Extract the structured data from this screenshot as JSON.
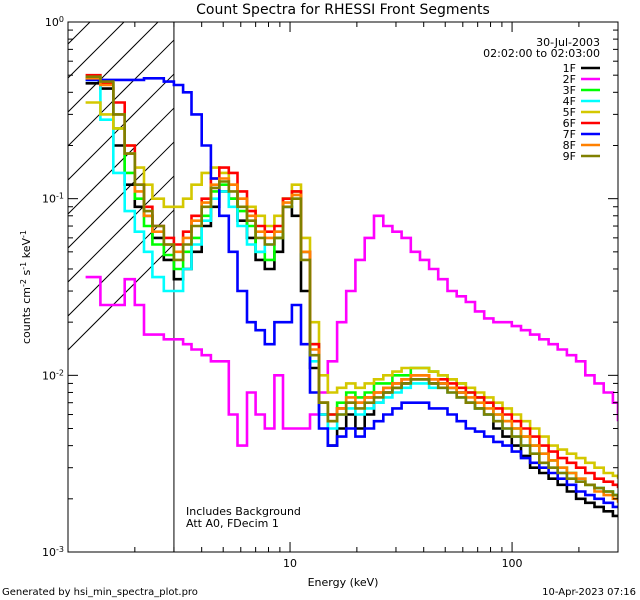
{
  "chart_data": {
    "type": "line",
    "title": "Count Spectra for RHESSI Front Segments",
    "xlabel": "Energy (keV)",
    "ylabel_parts": [
      "counts cm",
      "-2",
      " s",
      "-1",
      " keV",
      "-1"
    ],
    "x_scale": "log",
    "y_scale": "log",
    "xlim": [
      1,
      300
    ],
    "ylim": [
      0.001,
      1
    ],
    "x_tick_labels": [
      {
        "value": 10,
        "label": "10"
      },
      {
        "value": 100,
        "label": "100"
      }
    ],
    "y_tick_labels": [
      {
        "value": 1,
        "base": "10",
        "exp": "0"
      },
      {
        "value": 0.1,
        "base": "10",
        "exp": "-1"
      },
      {
        "value": 0.01,
        "base": "10",
        "exp": "-2"
      },
      {
        "value": 0.001,
        "base": "10",
        "exp": "-3"
      }
    ],
    "shaded_region": {
      "x_from": 1,
      "x_to": 3,
      "style": "hatched"
    },
    "date": "30-Jul-2003",
    "time_range": "02:02:00 to 02:03:00",
    "annotations": [
      "Includes Background",
      "Att A0, FDecim 1"
    ],
    "series": [
      {
        "name": "1F",
        "color": "#000000",
        "x": [
          1.2,
          1.4,
          1.6,
          1.8,
          2.0,
          2.2,
          2.4,
          2.7,
          3.0,
          3.3,
          3.6,
          4.0,
          4.4,
          4.8,
          5.3,
          5.8,
          6.4,
          7.0,
          7.7,
          8.5,
          9.3,
          10.2,
          11.2,
          12.3,
          13.5,
          14.8,
          16.3,
          17.9,
          19.7,
          21.7,
          23.9,
          26.3,
          28.9,
          31.8,
          35.0,
          38.5,
          42.3,
          46.5,
          51.2,
          56.3,
          61.9,
          68.1,
          74.9,
          82.4,
          90.6,
          99.7,
          109.7,
          120.6,
          132.7,
          146.0,
          160.6,
          176.6,
          194.3,
          213.7,
          235.1,
          258.6,
          284.5,
          300.0
        ],
        "y": [
          0.45,
          0.42,
          0.2,
          0.12,
          0.09,
          0.08,
          0.06,
          0.045,
          0.035,
          0.04,
          0.05,
          0.07,
          0.09,
          0.11,
          0.1,
          0.075,
          0.06,
          0.045,
          0.04,
          0.05,
          0.09,
          0.08,
          0.03,
          0.011,
          0.006,
          0.004,
          0.005,
          0.006,
          0.005,
          0.006,
          0.007,
          0.008,
          0.0085,
          0.009,
          0.0095,
          0.0095,
          0.009,
          0.009,
          0.0085,
          0.008,
          0.007,
          0.0065,
          0.006,
          0.005,
          0.0045,
          0.004,
          0.0035,
          0.003,
          0.0028,
          0.0026,
          0.0024,
          0.0022,
          0.002,
          0.0019,
          0.0018,
          0.0017,
          0.0016,
          0.0016
        ]
      },
      {
        "name": "2F",
        "color": "#ff00ff",
        "x": [
          1.2,
          1.4,
          1.6,
          1.8,
          2.0,
          2.2,
          2.4,
          2.7,
          3.0,
          3.3,
          3.6,
          4.0,
          4.4,
          4.8,
          5.3,
          5.8,
          6.4,
          7.0,
          7.7,
          8.5,
          9.3,
          10.2,
          11.2,
          12.3,
          13.5,
          14.8,
          16.3,
          17.9,
          19.7,
          21.7,
          23.9,
          26.3,
          28.9,
          31.8,
          35.0,
          38.5,
          42.3,
          46.5,
          51.2,
          56.3,
          61.9,
          68.1,
          74.9,
          82.4,
          90.6,
          99.7,
          109.7,
          120.6,
          132.7,
          146.0,
          160.6,
          176.6,
          194.3,
          213.7,
          235.1,
          258.6,
          284.5,
          300.0
        ],
        "y": [
          0.036,
          0.025,
          0.025,
          0.035,
          0.025,
          0.017,
          0.017,
          0.016,
          0.016,
          0.015,
          0.014,
          0.013,
          0.012,
          0.012,
          0.006,
          0.004,
          0.008,
          0.006,
          0.005,
          0.01,
          0.005,
          0.005,
          0.005,
          0.006,
          0.008,
          0.012,
          0.02,
          0.03,
          0.045,
          0.06,
          0.08,
          0.07,
          0.065,
          0.06,
          0.05,
          0.045,
          0.04,
          0.035,
          0.03,
          0.028,
          0.026,
          0.023,
          0.021,
          0.02,
          0.02,
          0.019,
          0.018,
          0.017,
          0.016,
          0.015,
          0.014,
          0.013,
          0.012,
          0.01,
          0.009,
          0.008,
          0.007,
          0.0055
        ]
      },
      {
        "name": "3F",
        "color": "#00ff00",
        "x": [
          1.2,
          1.4,
          1.6,
          1.8,
          2.0,
          2.2,
          2.4,
          2.7,
          3.0,
          3.3,
          3.6,
          4.0,
          4.4,
          4.8,
          5.3,
          5.8,
          6.4,
          7.0,
          7.7,
          8.5,
          9.3,
          10.2,
          11.2,
          12.3,
          13.5,
          14.8,
          16.3,
          17.9,
          19.7,
          21.7,
          23.9,
          26.3,
          28.9,
          31.8,
          35.0,
          38.5,
          42.3,
          46.5,
          51.2,
          56.3,
          61.9,
          68.1,
          74.9,
          82.4,
          90.6,
          99.7,
          109.7,
          120.6,
          132.7,
          146.0,
          160.6,
          176.6,
          194.3,
          213.7,
          235.1,
          258.6,
          284.5,
          300.0
        ],
        "y": [
          0.48,
          0.45,
          0.25,
          0.14,
          0.1,
          0.07,
          0.055,
          0.048,
          0.04,
          0.05,
          0.06,
          0.08,
          0.11,
          0.12,
          0.1,
          0.085,
          0.07,
          0.05,
          0.045,
          0.06,
          0.1,
          0.11,
          0.05,
          0.015,
          0.007,
          0.006,
          0.007,
          0.008,
          0.0075,
          0.008,
          0.009,
          0.009,
          0.01,
          0.01,
          0.011,
          0.011,
          0.0105,
          0.01,
          0.0095,
          0.009,
          0.008,
          0.0075,
          0.007,
          0.006,
          0.0055,
          0.005,
          0.0045,
          0.004,
          0.0036,
          0.0033,
          0.003,
          0.0028,
          0.0026,
          0.0024,
          0.0023,
          0.0022,
          0.0021,
          0.002
        ]
      },
      {
        "name": "4F",
        "color": "#00ffff",
        "x": [
          1.2,
          1.4,
          1.6,
          1.8,
          2.0,
          2.2,
          2.4,
          2.7,
          3.0,
          3.3,
          3.6,
          4.0,
          4.4,
          4.8,
          5.3,
          5.8,
          6.4,
          7.0,
          7.7,
          8.5,
          9.3,
          10.2,
          11.2,
          12.3,
          13.5,
          14.8,
          16.3,
          17.9,
          19.7,
          21.7,
          23.9,
          26.3,
          28.9,
          31.8,
          35.0,
          38.5,
          42.3,
          46.5,
          51.2,
          56.3,
          61.9,
          68.1,
          74.9,
          82.4,
          90.6,
          99.7,
          109.7,
          120.6,
          132.7,
          146.0,
          160.6,
          176.6,
          194.3,
          213.7,
          235.1,
          258.6,
          284.5,
          300.0
        ],
        "y": [
          0.47,
          0.28,
          0.14,
          0.085,
          0.065,
          0.05,
          0.036,
          0.03,
          0.03,
          0.04,
          0.055,
          0.075,
          0.1,
          0.11,
          0.09,
          0.07,
          0.055,
          0.05,
          0.055,
          0.065,
          0.09,
          0.1,
          0.05,
          0.012,
          0.006,
          0.005,
          0.006,
          0.0065,
          0.006,
          0.0065,
          0.007,
          0.0075,
          0.008,
          0.0085,
          0.009,
          0.009,
          0.0085,
          0.0085,
          0.008,
          0.0075,
          0.007,
          0.0065,
          0.006,
          0.0055,
          0.005,
          0.0045,
          0.004,
          0.0036,
          0.0032,
          0.003,
          0.0028,
          0.0026,
          0.0025,
          0.0024,
          0.0023,
          0.0022,
          0.0021,
          0.002
        ]
      },
      {
        "name": "5F",
        "color": "#d4c800",
        "x": [
          1.2,
          1.4,
          1.6,
          1.8,
          2.0,
          2.2,
          2.4,
          2.7,
          3.0,
          3.3,
          3.6,
          4.0,
          4.4,
          4.8,
          5.3,
          5.8,
          6.4,
          7.0,
          7.7,
          8.5,
          9.3,
          10.2,
          11.2,
          12.3,
          13.5,
          14.8,
          16.3,
          17.9,
          19.7,
          21.7,
          23.9,
          26.3,
          28.9,
          31.8,
          35.0,
          38.5,
          42.3,
          46.5,
          51.2,
          56.3,
          61.9,
          68.1,
          74.9,
          82.4,
          90.6,
          99.7,
          109.7,
          120.6,
          132.7,
          146.0,
          160.6,
          176.6,
          194.3,
          213.7,
          235.1,
          258.6,
          284.5,
          300.0
        ],
        "y": [
          0.35,
          0.3,
          0.25,
          0.2,
          0.15,
          0.12,
          0.1,
          0.09,
          0.09,
          0.1,
          0.12,
          0.14,
          0.15,
          0.14,
          0.12,
          0.1,
          0.09,
          0.08,
          0.07,
          0.08,
          0.1,
          0.12,
          0.06,
          0.02,
          0.01,
          0.008,
          0.0085,
          0.009,
          0.0085,
          0.009,
          0.0095,
          0.01,
          0.0105,
          0.011,
          0.011,
          0.011,
          0.0105,
          0.01,
          0.0095,
          0.009,
          0.0085,
          0.008,
          0.0075,
          0.007,
          0.0065,
          0.006,
          0.0055,
          0.005,
          0.0045,
          0.004,
          0.0038,
          0.0036,
          0.0034,
          0.0032,
          0.003,
          0.0028,
          0.0027,
          0.0026
        ]
      },
      {
        "name": "6F",
        "color": "#ff0000",
        "x": [
          1.2,
          1.4,
          1.6,
          1.8,
          2.0,
          2.2,
          2.4,
          2.7,
          3.0,
          3.3,
          3.6,
          4.0,
          4.4,
          4.8,
          5.3,
          5.8,
          6.4,
          7.0,
          7.7,
          8.5,
          9.3,
          10.2,
          11.2,
          12.3,
          13.5,
          14.8,
          16.3,
          17.9,
          19.7,
          21.7,
          23.9,
          26.3,
          28.9,
          31.8,
          35.0,
          38.5,
          42.3,
          46.5,
          51.2,
          56.3,
          61.9,
          68.1,
          74.9,
          82.4,
          90.6,
          99.7,
          109.7,
          120.6,
          132.7,
          146.0,
          160.6,
          176.6,
          194.3,
          213.7,
          235.1,
          258.6,
          284.5,
          300.0
        ],
        "y": [
          0.5,
          0.45,
          0.35,
          0.2,
          0.12,
          0.09,
          0.07,
          0.06,
          0.055,
          0.065,
          0.08,
          0.1,
          0.13,
          0.15,
          0.14,
          0.11,
          0.085,
          0.07,
          0.065,
          0.07,
          0.1,
          0.11,
          0.05,
          0.015,
          0.007,
          0.006,
          0.0065,
          0.007,
          0.007,
          0.0075,
          0.008,
          0.0085,
          0.009,
          0.0095,
          0.01,
          0.01,
          0.0095,
          0.0095,
          0.009,
          0.0085,
          0.008,
          0.0075,
          0.007,
          0.0065,
          0.006,
          0.0055,
          0.005,
          0.0045,
          0.004,
          0.0037,
          0.0034,
          0.0032,
          0.003,
          0.0028,
          0.0026,
          0.0025,
          0.0024,
          0.0023
        ]
      },
      {
        "name": "7F",
        "color": "#0000ff",
        "x": [
          1.2,
          1.4,
          1.6,
          1.8,
          2.0,
          2.2,
          2.4,
          2.7,
          3.0,
          3.3,
          3.6,
          4.0,
          4.4,
          4.8,
          5.3,
          5.8,
          6.4,
          7.0,
          7.7,
          8.5,
          9.3,
          10.2,
          11.2,
          12.3,
          13.5,
          14.8,
          16.3,
          17.9,
          19.7,
          21.7,
          23.9,
          26.3,
          28.9,
          31.8,
          35.0,
          38.5,
          42.3,
          46.5,
          51.2,
          56.3,
          61.9,
          68.1,
          74.9,
          82.4,
          90.6,
          99.7,
          109.7,
          120.6,
          132.7,
          146.0,
          160.6,
          176.6,
          194.3,
          213.7,
          235.1,
          258.6,
          284.5,
          300.0
        ],
        "y": [
          0.47,
          0.47,
          0.47,
          0.47,
          0.47,
          0.48,
          0.48,
          0.46,
          0.44,
          0.4,
          0.3,
          0.2,
          0.13,
          0.08,
          0.05,
          0.03,
          0.02,
          0.018,
          0.015,
          0.02,
          0.02,
          0.025,
          0.015,
          0.008,
          0.005,
          0.004,
          0.0045,
          0.005,
          0.0045,
          0.005,
          0.0055,
          0.006,
          0.0065,
          0.007,
          0.007,
          0.007,
          0.0065,
          0.0065,
          0.006,
          0.0055,
          0.005,
          0.0048,
          0.0045,
          0.0042,
          0.004,
          0.0037,
          0.0034,
          0.0032,
          0.003,
          0.0028,
          0.0026,
          0.0024,
          0.0022,
          0.0021,
          0.002,
          0.0019,
          0.0018,
          0.0018
        ]
      },
      {
        "name": "8F",
        "color": "#ff8000",
        "x": [
          1.2,
          1.4,
          1.6,
          1.8,
          2.0,
          2.2,
          2.4,
          2.7,
          3.0,
          3.3,
          3.6,
          4.0,
          4.4,
          4.8,
          5.3,
          5.8,
          6.4,
          7.0,
          7.7,
          8.5,
          9.3,
          10.2,
          11.2,
          12.3,
          13.5,
          14.8,
          16.3,
          17.9,
          19.7,
          21.7,
          23.9,
          26.3,
          28.9,
          31.8,
          35.0,
          38.5,
          42.3,
          46.5,
          51.2,
          56.3,
          61.9,
          68.1,
          74.9,
          82.4,
          90.6,
          99.7,
          109.7,
          120.6,
          132.7,
          146.0,
          160.6,
          176.6,
          194.3,
          213.7,
          235.1,
          258.6,
          284.5,
          300.0
        ],
        "y": [
          0.48,
          0.44,
          0.3,
          0.18,
          0.11,
          0.08,
          0.065,
          0.055,
          0.05,
          0.06,
          0.075,
          0.095,
          0.12,
          0.13,
          0.12,
          0.1,
          0.08,
          0.065,
          0.06,
          0.065,
          0.095,
          0.105,
          0.05,
          0.014,
          0.007,
          0.0055,
          0.0065,
          0.0075,
          0.007,
          0.0075,
          0.008,
          0.0085,
          0.009,
          0.0095,
          0.01,
          0.01,
          0.0095,
          0.009,
          0.0085,
          0.008,
          0.0075,
          0.007,
          0.0065,
          0.006,
          0.0055,
          0.005,
          0.0045,
          0.004,
          0.0036,
          0.0033,
          0.003,
          0.0028,
          0.0026,
          0.0024,
          0.0022,
          0.0021,
          0.002,
          0.0019
        ]
      },
      {
        "name": "9F",
        "color": "#808000",
        "x": [
          1.2,
          1.4,
          1.6,
          1.8,
          2.0,
          2.2,
          2.4,
          2.7,
          3.0,
          3.3,
          3.6,
          4.0,
          4.4,
          4.8,
          5.3,
          5.8,
          6.4,
          7.0,
          7.7,
          8.5,
          9.3,
          10.2,
          11.2,
          12.3,
          13.5,
          14.8,
          16.3,
          17.9,
          19.7,
          21.7,
          23.9,
          26.3,
          28.9,
          31.8,
          35.0,
          38.5,
          42.3,
          46.5,
          51.2,
          56.3,
          61.9,
          68.1,
          74.9,
          82.4,
          90.6,
          99.7,
          109.7,
          120.6,
          132.7,
          146.0,
          160.6,
          176.6,
          194.3,
          213.7,
          235.1,
          258.6,
          284.5,
          300.0
        ],
        "y": [
          0.49,
          0.46,
          0.3,
          0.18,
          0.12,
          0.085,
          0.07,
          0.055,
          0.045,
          0.055,
          0.07,
          0.09,
          0.115,
          0.125,
          0.11,
          0.09,
          0.075,
          0.06,
          0.055,
          0.06,
          0.09,
          0.1,
          0.045,
          0.013,
          0.007,
          0.0055,
          0.006,
          0.007,
          0.0065,
          0.007,
          0.0075,
          0.008,
          0.0085,
          0.009,
          0.0095,
          0.0095,
          0.009,
          0.0085,
          0.008,
          0.0075,
          0.007,
          0.0065,
          0.006,
          0.0055,
          0.005,
          0.0045,
          0.004,
          0.0036,
          0.0032,
          0.003,
          0.0028,
          0.0026,
          0.0025,
          0.0024,
          0.0023,
          0.0022,
          0.0021,
          0.002
        ]
      }
    ]
  },
  "footer": {
    "generated_by": "Generated by hsi_min_spectra_plot.pro",
    "timestamp": "10-Apr-2023 07:16"
  }
}
